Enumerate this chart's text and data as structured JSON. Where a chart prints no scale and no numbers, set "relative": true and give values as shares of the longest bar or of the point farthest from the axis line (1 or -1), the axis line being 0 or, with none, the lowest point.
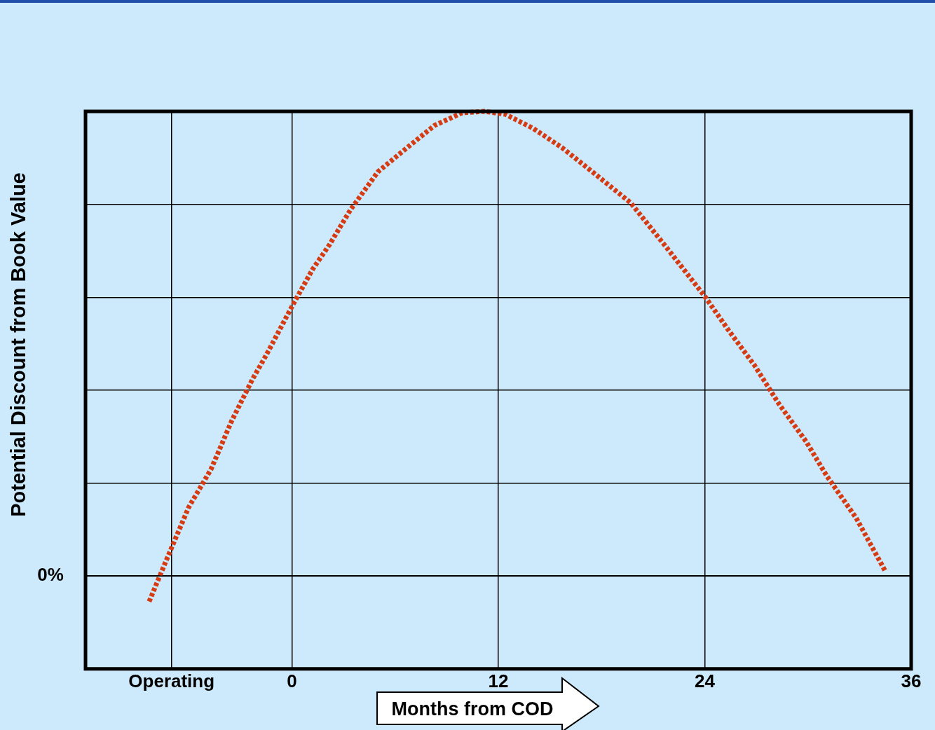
{
  "chart_data": {
    "type": "line",
    "relative": true,
    "xlabel": "Months from COD",
    "ylabel": "Potential Discount from Book Value",
    "xlim": [
      -12,
      36
    ],
    "xticks": [
      {
        "value": -7,
        "label": "Operating"
      },
      0,
      12,
      24,
      36
    ],
    "series": [
      {
        "color": "#d63c14",
        "x": [
          -8.3,
          -7.2,
          -6,
          -4.7,
          -3.5,
          -2.3,
          -1.5,
          0,
          1.2,
          2.2,
          3.4,
          5,
          6.7,
          8.3,
          9.9,
          11.2,
          12.4,
          14,
          15.7,
          17.7,
          19.7,
          21.8,
          24,
          25.4,
          26.9,
          28.3,
          29.9,
          31.1,
          32.8,
          34.5
        ],
        "values": [
          -0.055,
          0.043,
          0.148,
          0.23,
          0.334,
          0.423,
          0.475,
          0.58,
          0.66,
          0.714,
          0.788,
          0.87,
          0.922,
          0.97,
          0.997,
          1,
          0.994,
          0.964,
          0.922,
          0.863,
          0.803,
          0.706,
          0.602,
          0.528,
          0.453,
          0.371,
          0.289,
          0.215,
          0.125,
          0.01
        ]
      }
    ],
    "ref_lines": [
      {
        "axis": "y",
        "value": 0,
        "label": "0%",
        "color": "#000000"
      }
    ],
    "grid": true,
    "legend": false,
    "marker": "none",
    "line_style": "dotted"
  }
}
